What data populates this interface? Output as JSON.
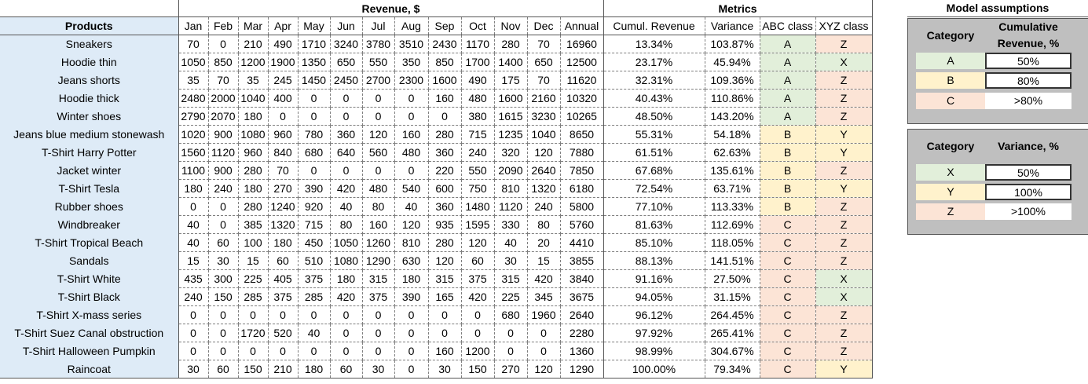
{
  "header": {
    "revenue_group": "Revenue, $",
    "metrics_group": "Metrics",
    "assumptions_group": "Model assumptions",
    "products_label": "Products",
    "months": [
      "Jan",
      "Feb",
      "Mar",
      "Apr",
      "May",
      "Jun",
      "Jul",
      "Aug",
      "Sep",
      "Oct",
      "Nov",
      "Dec"
    ],
    "annual_label": "Annual",
    "cumul_label": "Cumul. Revenue",
    "variance_label": "Variance",
    "abc_label": "ABC class",
    "xyz_label": "XYZ class"
  },
  "rows": [
    {
      "product": "Sneakers",
      "m": [
        "70",
        "0",
        "210",
        "490",
        "1710",
        "3240",
        "3780",
        "3510",
        "2430",
        "1170",
        "280",
        "70"
      ],
      "annual": "16960",
      "cumul": "13.34%",
      "variance": "103.87%",
      "abc": "A",
      "xyz": "Z"
    },
    {
      "product": "Hoodie thin",
      "m": [
        "1050",
        "850",
        "1200",
        "1900",
        "1350",
        "650",
        "550",
        "350",
        "850",
        "1700",
        "1400",
        "650"
      ],
      "annual": "12500",
      "cumul": "23.17%",
      "variance": "45.94%",
      "abc": "A",
      "xyz": "X"
    },
    {
      "product": "Jeans shorts",
      "m": [
        "35",
        "70",
        "35",
        "245",
        "1450",
        "2450",
        "2700",
        "2300",
        "1600",
        "490",
        "175",
        "70"
      ],
      "annual": "11620",
      "cumul": "32.31%",
      "variance": "109.36%",
      "abc": "A",
      "xyz": "Z"
    },
    {
      "product": "Hoodie thick",
      "m": [
        "2480",
        "2000",
        "1040",
        "400",
        "0",
        "0",
        "0",
        "0",
        "160",
        "480",
        "1600",
        "2160"
      ],
      "annual": "10320",
      "cumul": "40.43%",
      "variance": "110.86%",
      "abc": "A",
      "xyz": "Z"
    },
    {
      "product": "Winter shoes",
      "m": [
        "2790",
        "2070",
        "180",
        "0",
        "0",
        "0",
        "0",
        "0",
        "0",
        "380",
        "1615",
        "3230"
      ],
      "annual": "10265",
      "cumul": "48.50%",
      "variance": "143.20%",
      "abc": "A",
      "xyz": "Z"
    },
    {
      "product": "Jeans blue medium stonewash",
      "m": [
        "1020",
        "900",
        "1080",
        "960",
        "780",
        "360",
        "120",
        "160",
        "280",
        "715",
        "1235",
        "1040"
      ],
      "annual": "8650",
      "cumul": "55.31%",
      "variance": "54.18%",
      "abc": "B",
      "xyz": "Y"
    },
    {
      "product": "T-Shirt Harry Potter",
      "m": [
        "1560",
        "1120",
        "960",
        "840",
        "680",
        "640",
        "560",
        "480",
        "360",
        "240",
        "320",
        "120"
      ],
      "annual": "7880",
      "cumul": "61.51%",
      "variance": "62.63%",
      "abc": "B",
      "xyz": "Y"
    },
    {
      "product": "Jacket winter",
      "m": [
        "1100",
        "900",
        "280",
        "70",
        "0",
        "0",
        "0",
        "0",
        "220",
        "550",
        "2090",
        "2640"
      ],
      "annual": "7850",
      "cumul": "67.68%",
      "variance": "135.61%",
      "abc": "B",
      "xyz": "Z"
    },
    {
      "product": "T-Shirt Tesla",
      "m": [
        "180",
        "240",
        "180",
        "270",
        "390",
        "420",
        "480",
        "540",
        "600",
        "750",
        "810",
        "1320"
      ],
      "annual": "6180",
      "cumul": "72.54%",
      "variance": "63.71%",
      "abc": "B",
      "xyz": "Y"
    },
    {
      "product": "Rubber shoes",
      "m": [
        "0",
        "0",
        "280",
        "1240",
        "920",
        "40",
        "80",
        "40",
        "360",
        "1480",
        "1120",
        "240"
      ],
      "annual": "5800",
      "cumul": "77.10%",
      "variance": "113.33%",
      "abc": "B",
      "xyz": "Z"
    },
    {
      "product": "Windbreaker",
      "m": [
        "40",
        "0",
        "385",
        "1320",
        "715",
        "80",
        "160",
        "120",
        "935",
        "1595",
        "330",
        "80"
      ],
      "annual": "5760",
      "cumul": "81.63%",
      "variance": "112.69%",
      "abc": "C",
      "xyz": "Z"
    },
    {
      "product": "T-Shirt Tropical Beach",
      "m": [
        "40",
        "60",
        "100",
        "180",
        "450",
        "1050",
        "1260",
        "810",
        "280",
        "120",
        "40",
        "20"
      ],
      "annual": "4410",
      "cumul": "85.10%",
      "variance": "118.05%",
      "abc": "C",
      "xyz": "Z"
    },
    {
      "product": "Sandals",
      "m": [
        "15",
        "30",
        "15",
        "60",
        "510",
        "1080",
        "1290",
        "630",
        "120",
        "60",
        "30",
        "15"
      ],
      "annual": "3855",
      "cumul": "88.13%",
      "variance": "141.51%",
      "abc": "C",
      "xyz": "Z"
    },
    {
      "product": "T-Shirt White",
      "m": [
        "435",
        "300",
        "225",
        "405",
        "375",
        "180",
        "315",
        "180",
        "315",
        "375",
        "315",
        "420"
      ],
      "annual": "3840",
      "cumul": "91.16%",
      "variance": "27.50%",
      "abc": "C",
      "xyz": "X"
    },
    {
      "product": "T-Shirt Black",
      "m": [
        "240",
        "150",
        "285",
        "375",
        "285",
        "420",
        "375",
        "390",
        "165",
        "420",
        "225",
        "345"
      ],
      "annual": "3675",
      "cumul": "94.05%",
      "variance": "31.15%",
      "abc": "C",
      "xyz": "X"
    },
    {
      "product": "T-Shirt X-mass series",
      "m": [
        "0",
        "0",
        "0",
        "0",
        "0",
        "0",
        "0",
        "0",
        "0",
        "0",
        "680",
        "1960"
      ],
      "annual": "2640",
      "cumul": "96.12%",
      "variance": "264.45%",
      "abc": "C",
      "xyz": "Z"
    },
    {
      "product": "T-Shirt Suez Canal obstruction",
      "m": [
        "0",
        "0",
        "1720",
        "520",
        "40",
        "0",
        "0",
        "0",
        "0",
        "0",
        "0",
        "0"
      ],
      "annual": "2280",
      "cumul": "97.92%",
      "variance": "265.41%",
      "abc": "C",
      "xyz": "Z"
    },
    {
      "product": "T-Shirt Halloween Pumpkin",
      "m": [
        "0",
        "0",
        "0",
        "0",
        "0",
        "0",
        "0",
        "0",
        "160",
        "1200",
        "0",
        "0"
      ],
      "annual": "1360",
      "cumul": "98.99%",
      "variance": "304.67%",
      "abc": "C",
      "xyz": "Z"
    },
    {
      "product": "Raincoat",
      "m": [
        "30",
        "60",
        "150",
        "210",
        "180",
        "60",
        "30",
        "0",
        "30",
        "150",
        "270",
        "120"
      ],
      "annual": "1290",
      "cumul": "100.00%",
      "variance": "79.34%",
      "abc": "C",
      "xyz": "Y"
    }
  ],
  "colors": {
    "class_A": "#e2efda",
    "class_B": "#fff2cc",
    "class_C": "#fce4d6",
    "products_bg": "#deebf7",
    "panel_bg": "#bfbfbf"
  },
  "assumptions": {
    "title": "Model assumptions",
    "abc": {
      "category_label": "Category",
      "value_label_1": "Cumulative",
      "value_label_2": "Revenue, %",
      "items": [
        {
          "cat": "A",
          "val": "50%"
        },
        {
          "cat": "B",
          "val": "80%"
        },
        {
          "cat": "C",
          "val": ">80%"
        }
      ]
    },
    "xyz": {
      "category_label": "Category",
      "value_label": "Variance, %",
      "items": [
        {
          "cat": "X",
          "val": "50%"
        },
        {
          "cat": "Y",
          "val": "100%"
        },
        {
          "cat": "Z",
          "val": ">100%"
        }
      ]
    }
  }
}
